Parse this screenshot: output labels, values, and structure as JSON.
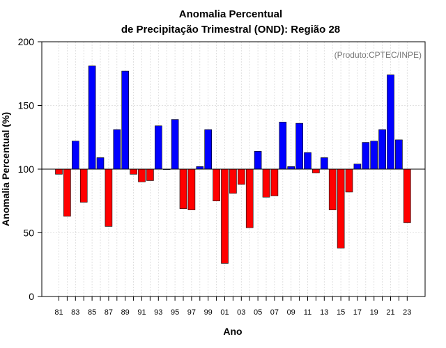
{
  "chart_data": {
    "type": "bar",
    "title_line1": "Anomalia Percentual",
    "title_line2": "de Precipitação Trimestral (OND): Região 28",
    "xlabel": "Ano",
    "ylabel": "Anomalia Percentual (%)",
    "credit": "(Produto:CPTEC/INPE)",
    "ylim": [
      0,
      200
    ],
    "yticks": [
      "0",
      "50",
      "100",
      "150",
      "200"
    ],
    "baseline": 100,
    "grid": true,
    "colors": {
      "above": "#0000ff",
      "below": "#ff0000",
      "outline": "#000000",
      "grid": "#d9d9d9"
    },
    "xtick_labels": [
      "81",
      "83",
      "85",
      "87",
      "89",
      "91",
      "93",
      "95",
      "97",
      "99",
      "01",
      "03",
      "05",
      "07",
      "09",
      "11",
      "13",
      "15",
      "17",
      "19",
      "21",
      "23"
    ],
    "categories": [
      "81",
      "82",
      "83",
      "84",
      "85",
      "86",
      "87",
      "88",
      "89",
      "90",
      "91",
      "92",
      "93",
      "94",
      "95",
      "96",
      "97",
      "98",
      "99",
      "00",
      "01",
      "02",
      "03",
      "04",
      "05",
      "06",
      "07",
      "08",
      "09",
      "10",
      "11",
      "12",
      "13",
      "14",
      "15",
      "16",
      "17",
      "18",
      "19",
      "20",
      "21",
      "22",
      "23"
    ],
    "values": [
      96,
      63,
      122,
      74,
      181,
      109,
      55,
      131,
      177,
      96,
      90,
      91,
      134,
      100,
      139,
      69,
      68,
      102,
      131,
      75,
      26,
      81,
      88,
      54,
      114,
      78,
      79,
      137,
      102,
      136,
      113,
      97,
      109,
      68,
      38,
      82,
      104,
      121,
      122,
      131,
      174,
      123,
      58
    ]
  }
}
